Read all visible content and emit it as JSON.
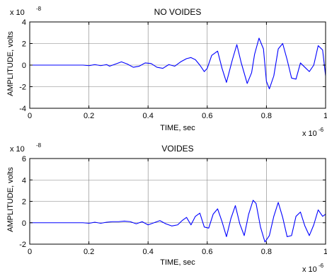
{
  "figure": {
    "background": "#ffffff",
    "axes_color": "#000000",
    "grid_color": "#808080",
    "line_color": "#0000ff"
  },
  "chart_data": [
    {
      "type": "line",
      "title": "NO VOIDES",
      "xlabel": "TIME, sec",
      "ylabel": "AMPLITUDE, volts",
      "x_multiplier": "x 10",
      "x_exponent": "-6",
      "y_multiplier": "x 10",
      "y_exponent": "-8",
      "xlim": [
        0,
        1
      ],
      "ylim": [
        -4,
        4
      ],
      "xticks": [
        0,
        0.2,
        0.4,
        0.6,
        0.8,
        1
      ],
      "xtick_labels": [
        "0",
        "0.2",
        "0.4",
        "0.6",
        "0.8",
        "1"
      ],
      "yticks": [
        -4,
        -2,
        0,
        2,
        4
      ],
      "ytick_labels": [
        "-4",
        "-2",
        "0",
        "2",
        "4"
      ],
      "grid": true,
      "series": [
        {
          "color": "#0000ff",
          "x": [
            0,
            0.1,
            0.18,
            0.2,
            0.22,
            0.24,
            0.26,
            0.27,
            0.29,
            0.31,
            0.33,
            0.35,
            0.37,
            0.39,
            0.41,
            0.43,
            0.45,
            0.47,
            0.49,
            0.51,
            0.53,
            0.545,
            0.56,
            0.575,
            0.59,
            0.6,
            0.615,
            0.635,
            0.65,
            0.665,
            0.685,
            0.7,
            0.715,
            0.735,
            0.75,
            0.76,
            0.775,
            0.79,
            0.8,
            0.81,
            0.825,
            0.84,
            0.855,
            0.87,
            0.885,
            0.9,
            0.915,
            0.93,
            0.945,
            0.96,
            0.975,
            0.99,
            1
          ],
          "y": [
            0,
            0,
            0,
            -0.05,
            0.05,
            -0.05,
            0.05,
            -0.1,
            0.1,
            0.3,
            0.1,
            -0.2,
            -0.1,
            0.2,
            0.15,
            -0.2,
            -0.3,
            0.05,
            -0.1,
            0.3,
            0.6,
            0.7,
            0.5,
            0,
            -0.6,
            -0.3,
            0.9,
            1.3,
            -0.3,
            -1.6,
            0.5,
            1.9,
            0.2,
            -1.7,
            -0.7,
            1.0,
            2.5,
            1.5,
            -1.5,
            -2.2,
            -1.0,
            1.5,
            2.0,
            0.5,
            -1.2,
            -1.3,
            0.2,
            -0.2,
            -0.6,
            0.0,
            1.8,
            1.4,
            -1.0
          ]
        }
      ]
    },
    {
      "type": "line",
      "title": "VOIDES",
      "xlabel": "TIME, sec",
      "ylabel": "AMPLITUDE, volts",
      "x_multiplier": "x 10",
      "x_exponent": "-6",
      "y_multiplier": "x 10",
      "y_exponent": "-8",
      "xlim": [
        0,
        1
      ],
      "ylim": [
        -2,
        6
      ],
      "xticks": [
        0,
        0.2,
        0.4,
        0.6,
        0.8,
        1
      ],
      "xtick_labels": [
        "0",
        "0.2",
        "0.4",
        "0.6",
        "0.8",
        "1"
      ],
      "yticks": [
        -2,
        0,
        2,
        4,
        6
      ],
      "ytick_labels": [
        "-2",
        "0",
        "2",
        "4",
        "6"
      ],
      "grid": true,
      "series": [
        {
          "color": "#0000ff",
          "x": [
            0,
            0.1,
            0.18,
            0.2,
            0.22,
            0.24,
            0.26,
            0.28,
            0.3,
            0.32,
            0.34,
            0.36,
            0.38,
            0.4,
            0.42,
            0.44,
            0.46,
            0.48,
            0.5,
            0.515,
            0.53,
            0.545,
            0.56,
            0.575,
            0.59,
            0.605,
            0.62,
            0.635,
            0.65,
            0.665,
            0.68,
            0.695,
            0.71,
            0.725,
            0.74,
            0.755,
            0.765,
            0.78,
            0.795,
            0.81,
            0.825,
            0.84,
            0.855,
            0.87,
            0.885,
            0.9,
            0.915,
            0.93,
            0.945,
            0.96,
            0.975,
            0.99,
            1
          ],
          "y": [
            0,
            0,
            0,
            -0.05,
            0.05,
            -0.05,
            0.05,
            0.1,
            0.1,
            0.15,
            0.1,
            -0.1,
            0.1,
            -0.2,
            0.0,
            0.2,
            -0.1,
            -0.3,
            -0.2,
            0.2,
            0.5,
            -0.2,
            0.6,
            0.9,
            -0.4,
            -0.5,
            0.8,
            1.3,
            0.1,
            -1.3,
            0.4,
            1.6,
            -0.1,
            -1.2,
            0.8,
            2.1,
            1.8,
            -0.4,
            -1.8,
            -1.2,
            0.6,
            1.9,
            0.5,
            -1.3,
            -1.2,
            0.6,
            1.0,
            -0.3,
            -1.2,
            -0.2,
            1.2,
            0.6,
            0.8
          ]
        }
      ]
    }
  ]
}
